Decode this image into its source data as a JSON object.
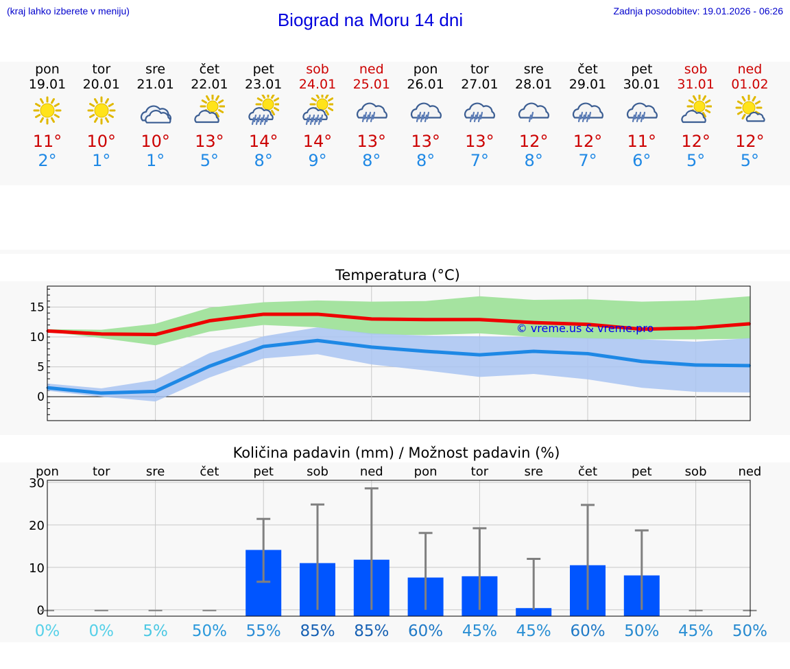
{
  "header": {
    "left_note": "(kraj lahko izberete v meniju)",
    "title": "Biograd na Moru 14 dni",
    "updated": "Zadnja posodobitev: 19.01.2026 - 06:26"
  },
  "days": [
    {
      "name": "pon",
      "date": "19.01",
      "icon": "sun-icon",
      "tmax": "11°",
      "tmin": "2°",
      "weekend": false
    },
    {
      "name": "tor",
      "date": "20.01",
      "icon": "sun-icon",
      "tmax": "10°",
      "tmin": "1°",
      "weekend": false
    },
    {
      "name": "sre",
      "date": "21.01",
      "icon": "cloudy-icon",
      "tmax": "10°",
      "tmin": "1°",
      "weekend": false
    },
    {
      "name": "čet",
      "date": "22.01",
      "icon": "sun-cloud-icon",
      "tmax": "13°",
      "tmin": "5°",
      "weekend": false
    },
    {
      "name": "pet",
      "date": "23.01",
      "icon": "sun-cloud-rain-icon",
      "tmax": "14°",
      "tmin": "8°",
      "weekend": false
    },
    {
      "name": "sob",
      "date": "24.01",
      "icon": "sun-cloud-rain-icon",
      "tmax": "14°",
      "tmin": "9°",
      "weekend": true
    },
    {
      "name": "ned",
      "date": "25.01",
      "icon": "cloud-rain-icon",
      "tmax": "13°",
      "tmin": "8°",
      "weekend": true
    },
    {
      "name": "pon",
      "date": "26.01",
      "icon": "cloud-rain-icon",
      "tmax": "13°",
      "tmin": "8°",
      "weekend": false
    },
    {
      "name": "tor",
      "date": "27.01",
      "icon": "cloud-rain-icon",
      "tmax": "13°",
      "tmin": "7°",
      "weekend": false
    },
    {
      "name": "sre",
      "date": "28.01",
      "icon": "cloud-light-rain-icon",
      "tmax": "12°",
      "tmin": "8°",
      "weekend": false
    },
    {
      "name": "čet",
      "date": "29.01",
      "icon": "cloud-rain-icon",
      "tmax": "12°",
      "tmin": "7°",
      "weekend": false
    },
    {
      "name": "pet",
      "date": "30.01",
      "icon": "cloud-rain-icon",
      "tmax": "11°",
      "tmin": "6°",
      "weekend": false
    },
    {
      "name": "sob",
      "date": "31.01",
      "icon": "sun-cloud-icon",
      "tmax": "12°",
      "tmin": "5°",
      "weekend": true
    },
    {
      "name": "ned",
      "date": "01.02",
      "icon": "sun-small-cloud-icon",
      "tmax": "12°",
      "tmin": "5°",
      "weekend": true
    }
  ],
  "colors": {
    "max_line": "#ee0000",
    "min_line": "#1e88e5",
    "max_band": "#a5e3a0",
    "min_band": "#a9c4f2",
    "bar": "#0055ff",
    "err": "#808080",
    "grid": "#c8c8c8"
  },
  "chart_data": [
    {
      "type": "line",
      "title": "Temperatura (°C)",
      "watermark": "© vreme.us & vreme.pro",
      "ylim": [
        -4,
        18.5
      ],
      "yticks": [
        0,
        5,
        10,
        15
      ],
      "x": [
        0,
        1,
        2,
        3,
        4,
        5,
        6,
        7,
        8,
        9,
        10,
        11,
        12,
        13
      ],
      "series": [
        {
          "name": "max",
          "values": [
            11.0,
            10.5,
            10.4,
            12.7,
            13.8,
            13.8,
            13.0,
            12.9,
            12.9,
            12.4,
            12.1,
            11.3,
            11.5,
            12.2
          ],
          "band_low": [
            10.9,
            9.8,
            8.6,
            10.9,
            12.0,
            11.6,
            10.4,
            10.3,
            10.6,
            10.0,
            9.7,
            9.6,
            9.6,
            9.7
          ],
          "band_high": [
            11.3,
            11.2,
            12.2,
            14.9,
            15.8,
            16.1,
            15.9,
            16.0,
            16.8,
            16.2,
            16.3,
            15.9,
            16.1,
            16.8
          ]
        },
        {
          "name": "min",
          "values": [
            1.5,
            0.6,
            0.9,
            5.1,
            8.4,
            9.4,
            8.3,
            7.6,
            7.0,
            7.6,
            7.2,
            5.9,
            5.3,
            5.2
          ],
          "band_low": [
            1.0,
            0.0,
            -0.8,
            3.2,
            6.4,
            7.1,
            5.4,
            4.4,
            3.3,
            3.8,
            2.9,
            1.5,
            0.8,
            0.7
          ],
          "band_high": [
            2.2,
            1.4,
            2.8,
            7.3,
            10.1,
            11.6,
            10.6,
            10.2,
            10.1,
            10.0,
            9.8,
            9.6,
            9.2,
            9.8
          ]
        }
      ]
    },
    {
      "type": "bar",
      "title": "Količina padavin (mm) / Možnost padavin (%)",
      "ylim": [
        -1.5,
        30.5
      ],
      "yticks": [
        0,
        10,
        20,
        30
      ],
      "categories": [
        "pon",
        "tor",
        "sre",
        "čet",
        "pet",
        "sob",
        "ned",
        "pon",
        "tor",
        "sre",
        "čet",
        "pet",
        "sob",
        "ned"
      ],
      "values": [
        0,
        0,
        0,
        0,
        14.1,
        11.0,
        11.8,
        7.6,
        7.9,
        0.4,
        10.5,
        8.1,
        0,
        0
      ],
      "err_low": [
        0,
        0,
        0,
        0,
        6.6,
        0,
        0,
        0,
        0,
        0,
        0,
        0,
        0,
        0
      ],
      "err_high": [
        0,
        0,
        0,
        0,
        21.4,
        24.8,
        28.6,
        18.1,
        19.2,
        12.0,
        24.7,
        18.7,
        0,
        0
      ],
      "probability": [
        "0%",
        "0%",
        "5%",
        "50%",
        "55%",
        "85%",
        "85%",
        "60%",
        "45%",
        "45%",
        "60%",
        "50%",
        "45%",
        "50%"
      ],
      "prob_colors": [
        "#56d0e8",
        "#56d0e8",
        "#4cc8e3",
        "#2a99db",
        "#2a8cd5",
        "#1660b3",
        "#1660b3",
        "#207ac7",
        "#2a8fd4",
        "#2a8fd4",
        "#207ac7",
        "#2589cf",
        "#2a8fd4",
        "#2589cf"
      ]
    }
  ]
}
